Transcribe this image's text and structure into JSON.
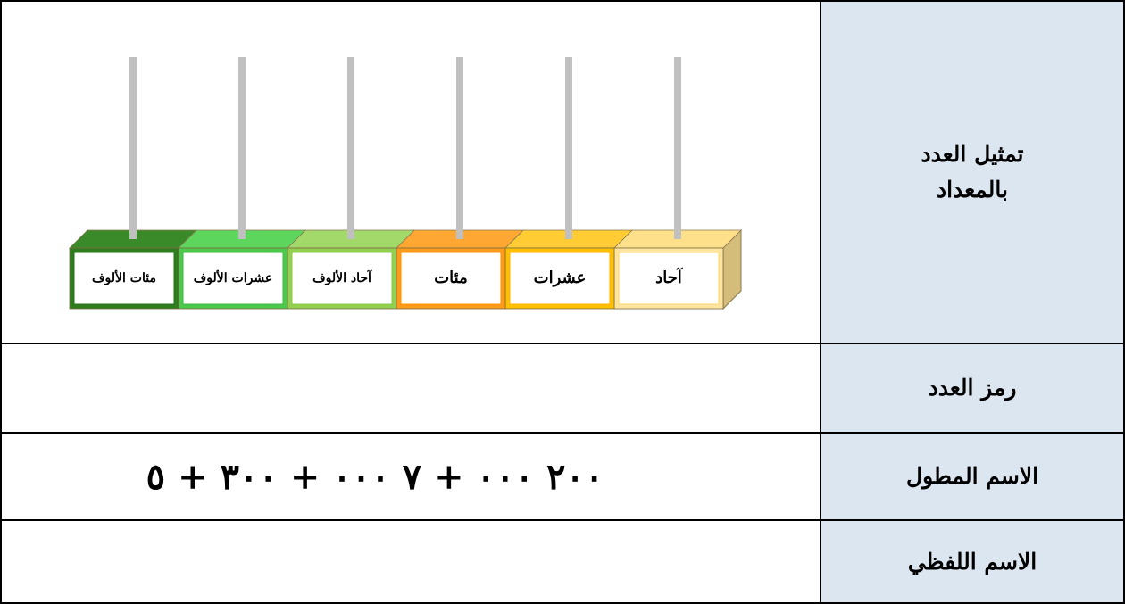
{
  "rows": [
    {
      "label": "تمثيل العدد بالمعداد"
    },
    {
      "label": "رمز العدد"
    },
    {
      "label": "الاسم المطول",
      "content": "٢٠٠ ٠٠٠ + ٧ ٠٠٠ + ٣٠٠ + ٥"
    },
    {
      "label": "الاسم اللفظي"
    }
  ],
  "abacus": {
    "places": [
      "آحاد",
      "عشرات",
      "مئات",
      "آحاد الألوف",
      "عشرات الألوف",
      "مئات الألوف"
    ]
  }
}
